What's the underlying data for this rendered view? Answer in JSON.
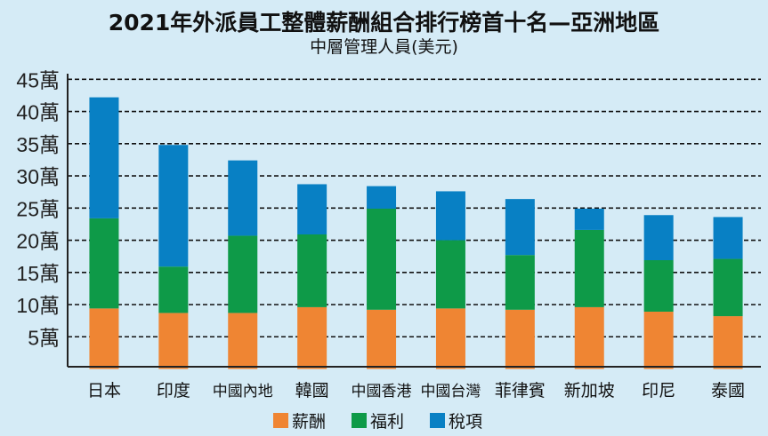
{
  "chart_data": {
    "type": "bar",
    "stacked": true,
    "title": "2021年外派員工整體薪酬組合排行榜首十名—亞洲地區",
    "subtitle": "中層管理人員(美元)",
    "categories": [
      "日本",
      "印度",
      "中國內地",
      "韓國",
      "中國香港",
      "中國台灣",
      "菲律賓",
      "新加坡",
      "印尼",
      "泰國"
    ],
    "series": [
      {
        "name": "薪酬",
        "color": "#ef8533",
        "values": [
          9.4,
          8.7,
          8.7,
          9.6,
          9.2,
          9.4,
          9.2,
          9.6,
          8.9,
          8.2
        ]
      },
      {
        "name": "福利",
        "color": "#0e9a48",
        "values": [
          14.0,
          7.2,
          12.0,
          11.3,
          15.7,
          10.6,
          8.5,
          12.0,
          8.0,
          8.9
        ]
      },
      {
        "name": "稅項",
        "color": "#0880c4",
        "values": [
          18.8,
          18.9,
          11.7,
          7.8,
          3.5,
          7.6,
          8.7,
          3.3,
          7.0,
          6.5
        ]
      }
    ],
    "yticks": [
      "5萬",
      "10萬",
      "15萬",
      "20萬",
      "25萬",
      "30萬",
      "35萬",
      "40萬",
      "45萬"
    ],
    "ylim": [
      0,
      45
    ],
    "unit": "萬",
    "grid": true,
    "legend": "bottom"
  }
}
